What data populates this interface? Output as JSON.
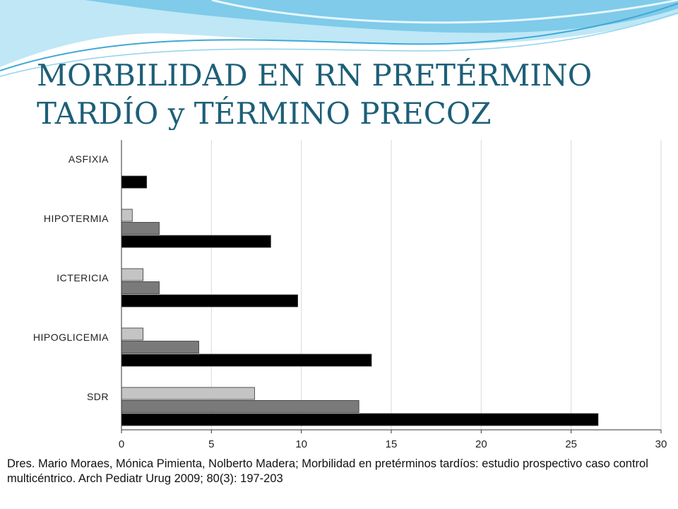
{
  "slide": {
    "title_line1": "MORBILIDAD EN RN PRETÉRMINO",
    "title_line2": "TARDÍO y TÉRMINO PRECOZ",
    "citation": "Dres. Mario Moraes, Mónica Pimienta, Nolberto Madera; Morbilidad en pretérminos tardíos: estudio prospectivo caso control multicéntrico. Arch Pediatr Urug 2009; 80(3): 197-203"
  },
  "colors": {
    "title": "#1d5f78",
    "wave_light": "#bfe7f6",
    "wave_mid": "#7fcbe9",
    "wave_dark": "#3fa9d6",
    "series": [
      "#c4c4c4",
      "#7a7a7a",
      "#000000"
    ],
    "grid": "#d9d9d9"
  },
  "chart_data": {
    "type": "bar",
    "orientation": "horizontal",
    "categories": [
      "ASFIXIA",
      "HIPOTERMIA",
      "ICTERICIA",
      "HIPOGLICEMIA",
      "SDR"
    ],
    "series": [
      {
        "values": [
          0,
          0.6,
          1.2,
          1.2,
          7.4
        ]
      },
      {
        "values": [
          0,
          2.1,
          2.1,
          4.3,
          13.2
        ]
      },
      {
        "values": [
          1.4,
          8.3,
          9.8,
          13.9,
          26.5
        ]
      }
    ],
    "xlim": [
      0,
      30
    ],
    "xticks": [
      "0",
      "5",
      "10",
      "15",
      "20",
      "25",
      "30"
    ],
    "grid": true,
    "legend": "none"
  }
}
